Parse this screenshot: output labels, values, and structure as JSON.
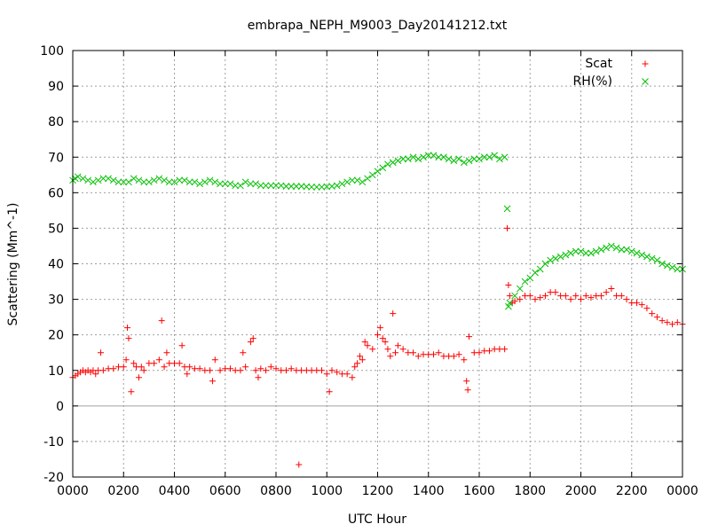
{
  "chart_data": {
    "type": "scatter",
    "title": "embrapa_NEPH_M9003_Day20141212.txt",
    "xlabel": "UTC Hour",
    "ylabel": "Scattering (Mm^-1)",
    "xlim": [
      0,
      24
    ],
    "ylim": [
      -20,
      100
    ],
    "x_ticks": [
      0,
      2,
      4,
      6,
      8,
      10,
      12,
      14,
      16,
      18,
      20,
      22,
      24
    ],
    "x_tick_labels": [
      "0000",
      "0200",
      "0400",
      "0600",
      "0800",
      "1000",
      "1200",
      "1400",
      "1600",
      "1800",
      "2000",
      "2200",
      "0000"
    ],
    "y_ticks": [
      -20,
      -10,
      0,
      10,
      20,
      30,
      40,
      50,
      60,
      70,
      80,
      90,
      100
    ],
    "y_tick_labels": [
      "-20",
      "-10",
      "0",
      "10",
      "20",
      "30",
      "40",
      "50",
      "60",
      "70",
      "80",
      "90",
      "100"
    ],
    "grid": true,
    "legend_position": "top-right",
    "series": [
      {
        "name": "Scat",
        "marker": "plus",
        "color": "#ff0000",
        "points": [
          [
            0.0,
            8
          ],
          [
            0.1,
            8.5
          ],
          [
            0.2,
            9
          ],
          [
            0.3,
            9.5
          ],
          [
            0.4,
            10
          ],
          [
            0.5,
            9.5
          ],
          [
            0.6,
            10
          ],
          [
            0.7,
            9.5
          ],
          [
            0.8,
            10
          ],
          [
            0.9,
            9
          ],
          [
            1.0,
            10
          ],
          [
            1.1,
            15
          ],
          [
            1.2,
            10
          ],
          [
            1.4,
            10.5
          ],
          [
            1.6,
            10.5
          ],
          [
            1.8,
            11
          ],
          [
            2.0,
            11
          ],
          [
            2.1,
            13
          ],
          [
            2.15,
            22
          ],
          [
            2.2,
            19
          ],
          [
            2.3,
            4
          ],
          [
            2.4,
            12
          ],
          [
            2.5,
            11
          ],
          [
            2.6,
            8
          ],
          [
            2.7,
            11
          ],
          [
            2.8,
            10
          ],
          [
            3.0,
            12
          ],
          [
            3.2,
            12
          ],
          [
            3.4,
            13
          ],
          [
            3.5,
            24
          ],
          [
            3.6,
            11
          ],
          [
            3.7,
            15
          ],
          [
            3.8,
            12
          ],
          [
            4.0,
            12
          ],
          [
            4.2,
            12
          ],
          [
            4.3,
            17
          ],
          [
            4.4,
            11
          ],
          [
            4.5,
            9
          ],
          [
            4.6,
            11
          ],
          [
            4.8,
            10.5
          ],
          [
            5.0,
            10.5
          ],
          [
            5.2,
            10
          ],
          [
            5.4,
            10
          ],
          [
            5.5,
            7
          ],
          [
            5.6,
            13
          ],
          [
            5.8,
            10
          ],
          [
            6.0,
            10.5
          ],
          [
            6.2,
            10.5
          ],
          [
            6.4,
            10
          ],
          [
            6.6,
            10
          ],
          [
            6.7,
            15
          ],
          [
            6.8,
            11
          ],
          [
            7.0,
            18
          ],
          [
            7.1,
            19
          ],
          [
            7.2,
            10
          ],
          [
            7.3,
            8
          ],
          [
            7.4,
            10.5
          ],
          [
            7.6,
            10
          ],
          [
            7.8,
            11
          ],
          [
            8.0,
            10.5
          ],
          [
            8.2,
            10
          ],
          [
            8.4,
            10
          ],
          [
            8.6,
            10.5
          ],
          [
            8.8,
            10
          ],
          [
            8.9,
            -16.5
          ],
          [
            9.0,
            10
          ],
          [
            9.2,
            10
          ],
          [
            9.4,
            10
          ],
          [
            9.6,
            10
          ],
          [
            9.8,
            10
          ],
          [
            10.0,
            9
          ],
          [
            10.1,
            4
          ],
          [
            10.2,
            10
          ],
          [
            10.4,
            9.5
          ],
          [
            10.6,
            9
          ],
          [
            10.8,
            9
          ],
          [
            11.0,
            8
          ],
          [
            11.1,
            11
          ],
          [
            11.2,
            12
          ],
          [
            11.3,
            14
          ],
          [
            11.4,
            13
          ],
          [
            11.5,
            18
          ],
          [
            11.6,
            17
          ],
          [
            11.8,
            16
          ],
          [
            12.0,
            20
          ],
          [
            12.1,
            22
          ],
          [
            12.2,
            19
          ],
          [
            12.3,
            18
          ],
          [
            12.4,
            16
          ],
          [
            12.5,
            14
          ],
          [
            12.6,
            26
          ],
          [
            12.7,
            15
          ],
          [
            12.8,
            17
          ],
          [
            13.0,
            16
          ],
          [
            13.2,
            15
          ],
          [
            13.4,
            15
          ],
          [
            13.6,
            14
          ],
          [
            13.8,
            14.5
          ],
          [
            14.0,
            14.5
          ],
          [
            14.2,
            14.5
          ],
          [
            14.4,
            15
          ],
          [
            14.6,
            14
          ],
          [
            14.8,
            14
          ],
          [
            15.0,
            14
          ],
          [
            15.2,
            14.5
          ],
          [
            15.4,
            13
          ],
          [
            15.5,
            7
          ],
          [
            15.55,
            4.5
          ],
          [
            15.6,
            19.5
          ],
          [
            15.8,
            15
          ],
          [
            16.0,
            15
          ],
          [
            16.2,
            15.5
          ],
          [
            16.4,
            15.5
          ],
          [
            16.6,
            16
          ],
          [
            16.8,
            16
          ],
          [
            17.0,
            16
          ],
          [
            17.1,
            50
          ],
          [
            17.15,
            34
          ],
          [
            17.2,
            31
          ],
          [
            17.3,
            29
          ],
          [
            17.4,
            29.5
          ],
          [
            17.6,
            30
          ],
          [
            17.8,
            31
          ],
          [
            18.0,
            31
          ],
          [
            18.2,
            30
          ],
          [
            18.4,
            30.5
          ],
          [
            18.6,
            31
          ],
          [
            18.8,
            32
          ],
          [
            19.0,
            32
          ],
          [
            19.2,
            31
          ],
          [
            19.4,
            31
          ],
          [
            19.6,
            30
          ],
          [
            19.8,
            31
          ],
          [
            20.0,
            30
          ],
          [
            20.2,
            31
          ],
          [
            20.4,
            30.5
          ],
          [
            20.6,
            31
          ],
          [
            20.8,
            31
          ],
          [
            21.0,
            32
          ],
          [
            21.2,
            33
          ],
          [
            21.4,
            31
          ],
          [
            21.6,
            31
          ],
          [
            21.8,
            30
          ],
          [
            22.0,
            29
          ],
          [
            22.2,
            29
          ],
          [
            22.4,
            28.5
          ],
          [
            22.6,
            27.5
          ],
          [
            22.8,
            26
          ],
          [
            23.0,
            25
          ],
          [
            23.2,
            24
          ],
          [
            23.4,
            23.5
          ],
          [
            23.6,
            23
          ],
          [
            23.8,
            23.5
          ],
          [
            24.0,
            23
          ]
        ]
      },
      {
        "name": "RH(%)",
        "marker": "cross",
        "color": "#00c000",
        "points": [
          [
            0.0,
            63.5
          ],
          [
            0.1,
            64
          ],
          [
            0.2,
            64.5
          ],
          [
            0.4,
            64
          ],
          [
            0.6,
            63.5
          ],
          [
            0.8,
            63
          ],
          [
            1.0,
            63.5
          ],
          [
            1.2,
            64
          ],
          [
            1.4,
            64
          ],
          [
            1.6,
            63.5
          ],
          [
            1.8,
            63
          ],
          [
            2.0,
            63
          ],
          [
            2.2,
            63
          ],
          [
            2.4,
            64
          ],
          [
            2.6,
            63.5
          ],
          [
            2.8,
            63
          ],
          [
            3.0,
            63
          ],
          [
            3.2,
            63.5
          ],
          [
            3.4,
            64
          ],
          [
            3.6,
            63.5
          ],
          [
            3.8,
            63
          ],
          [
            4.0,
            63
          ],
          [
            4.2,
            63.5
          ],
          [
            4.4,
            63.5
          ],
          [
            4.6,
            63
          ],
          [
            4.8,
            63
          ],
          [
            5.0,
            62.5
          ],
          [
            5.2,
            63
          ],
          [
            5.4,
            63.5
          ],
          [
            5.6,
            63
          ],
          [
            5.8,
            62.5
          ],
          [
            6.0,
            62.5
          ],
          [
            6.2,
            62.5
          ],
          [
            6.4,
            62
          ],
          [
            6.6,
            62
          ],
          [
            6.8,
            63
          ],
          [
            7.0,
            62.5
          ],
          [
            7.2,
            62.5
          ],
          [
            7.4,
            62
          ],
          [
            7.6,
            62
          ],
          [
            7.8,
            62
          ],
          [
            8.0,
            62
          ],
          [
            8.2,
            62
          ],
          [
            8.4,
            61.8
          ],
          [
            8.6,
            61.8
          ],
          [
            8.8,
            61.8
          ],
          [
            9.0,
            61.8
          ],
          [
            9.2,
            61.7
          ],
          [
            9.4,
            61.6
          ],
          [
            9.6,
            61.6
          ],
          [
            9.8,
            61.6
          ],
          [
            10.0,
            61.7
          ],
          [
            10.2,
            61.8
          ],
          [
            10.4,
            62
          ],
          [
            10.6,
            62.5
          ],
          [
            10.8,
            63
          ],
          [
            11.0,
            63.5
          ],
          [
            11.2,
            63.5
          ],
          [
            11.4,
            63
          ],
          [
            11.6,
            64
          ],
          [
            11.8,
            65
          ],
          [
            12.0,
            66
          ],
          [
            12.2,
            67
          ],
          [
            12.4,
            68
          ],
          [
            12.6,
            68.5
          ],
          [
            12.8,
            69
          ],
          [
            13.0,
            69.5
          ],
          [
            13.2,
            69.5
          ],
          [
            13.4,
            70
          ],
          [
            13.6,
            69.5
          ],
          [
            13.8,
            70
          ],
          [
            14.0,
            70.5
          ],
          [
            14.2,
            70.5
          ],
          [
            14.4,
            70
          ],
          [
            14.6,
            70
          ],
          [
            14.8,
            69.5
          ],
          [
            15.0,
            69
          ],
          [
            15.2,
            69.5
          ],
          [
            15.4,
            68.5
          ],
          [
            15.6,
            69
          ],
          [
            15.8,
            69.5
          ],
          [
            16.0,
            69.5
          ],
          [
            16.2,
            70
          ],
          [
            16.4,
            70
          ],
          [
            16.6,
            70.5
          ],
          [
            16.8,
            69.5
          ],
          [
            17.0,
            70
          ],
          [
            17.1,
            55.5
          ],
          [
            17.15,
            28
          ],
          [
            17.2,
            29
          ],
          [
            17.4,
            31
          ],
          [
            17.6,
            33
          ],
          [
            17.8,
            35
          ],
          [
            18.0,
            36
          ],
          [
            18.2,
            37.5
          ],
          [
            18.4,
            38.5
          ],
          [
            18.6,
            40
          ],
          [
            18.8,
            41
          ],
          [
            19.0,
            41.5
          ],
          [
            19.2,
            42
          ],
          [
            19.4,
            42.5
          ],
          [
            19.6,
            43
          ],
          [
            19.8,
            43.5
          ],
          [
            20.0,
            43.5
          ],
          [
            20.2,
            43
          ],
          [
            20.4,
            43
          ],
          [
            20.6,
            43.5
          ],
          [
            20.8,
            44
          ],
          [
            21.0,
            44.5
          ],
          [
            21.2,
            45
          ],
          [
            21.4,
            44.5
          ],
          [
            21.6,
            44
          ],
          [
            21.8,
            44
          ],
          [
            22.0,
            43.5
          ],
          [
            22.2,
            43
          ],
          [
            22.4,
            42.5
          ],
          [
            22.6,
            42
          ],
          [
            22.8,
            41.5
          ],
          [
            23.0,
            41
          ],
          [
            23.2,
            40
          ],
          [
            23.4,
            39.5
          ],
          [
            23.6,
            39
          ],
          [
            23.8,
            38.5
          ],
          [
            24.0,
            38.5
          ]
        ]
      }
    ]
  }
}
